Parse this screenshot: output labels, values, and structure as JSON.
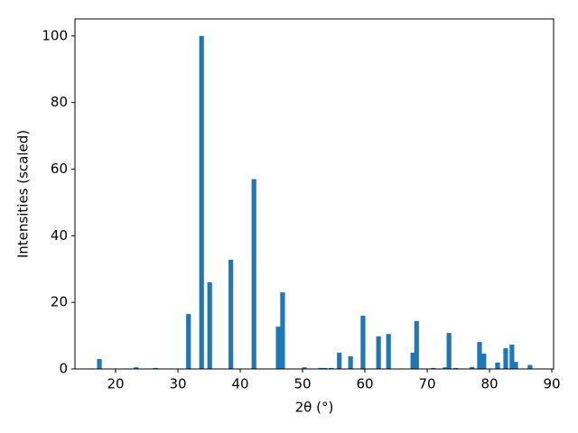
{
  "chart_data": {
    "type": "bar",
    "x_label": "2θ (°)",
    "y_label": "Intensities (scaled)",
    "color": "#1f77b4",
    "x": [
      17.4,
      23.3,
      26.4,
      31.7,
      33.8,
      35.1,
      38.5,
      42.2,
      46.1,
      46.8,
      50.3,
      52.9,
      53.6,
      54.6,
      55.9,
      57.7,
      59.7,
      62.2,
      63.8,
      67.7,
      68.3,
      71.0,
      72.9,
      73.5,
      74.6,
      77.2,
      78.4,
      79.1,
      81.3,
      82.6,
      83.6,
      84.2,
      86.5
    ],
    "values": [
      3.0,
      0.5,
      0.3,
      16.5,
      100,
      26,
      32.8,
      57,
      12.7,
      23,
      0.5,
      0.3,
      0.3,
      0.3,
      4.9,
      3.8,
      16,
      9.8,
      10.5,
      4.9,
      14.4,
      0.3,
      0.5,
      10.8,
      0.3,
      0.6,
      8.1,
      4.6,
      1.9,
      6.2,
      7.3,
      2.1,
      1.2
    ],
    "xlim": [
      13.48,
      90.29
    ],
    "ylim": [
      0,
      105.1
    ],
    "xticks": [
      20,
      30,
      40,
      50,
      60,
      70,
      80,
      90
    ],
    "yticks": [
      0,
      20,
      40,
      60,
      80,
      100
    ]
  }
}
